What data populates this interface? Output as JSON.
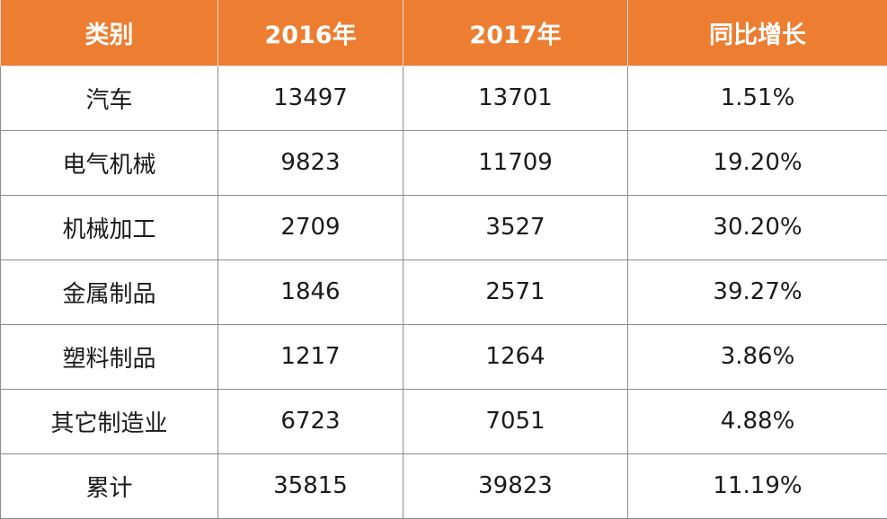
{
  "table": {
    "headers": [
      "类别",
      "2016年",
      "2017年",
      "同比增长"
    ],
    "rows": [
      [
        "汽车",
        "13497",
        "13701",
        "1.51%"
      ],
      [
        "电气机械",
        "9823",
        "11709",
        "19.20%"
      ],
      [
        "机械加工",
        "2709",
        "3527",
        "30.20%"
      ],
      [
        "金属制品",
        "1846",
        "2571",
        "39.27%"
      ],
      [
        "塑料制品",
        "1217",
        "1264",
        "3.86%"
      ],
      [
        "其它制造业",
        "6723",
        "7051",
        "4.88%"
      ],
      [
        "累计",
        "35815",
        "39823",
        "11.19%"
      ]
    ]
  },
  "colors": {
    "header_background": "#ED7D31",
    "header_text": "#FFFFFF",
    "cell_text": "#1A1A1A",
    "grid_line": "#8C8C8C"
  }
}
